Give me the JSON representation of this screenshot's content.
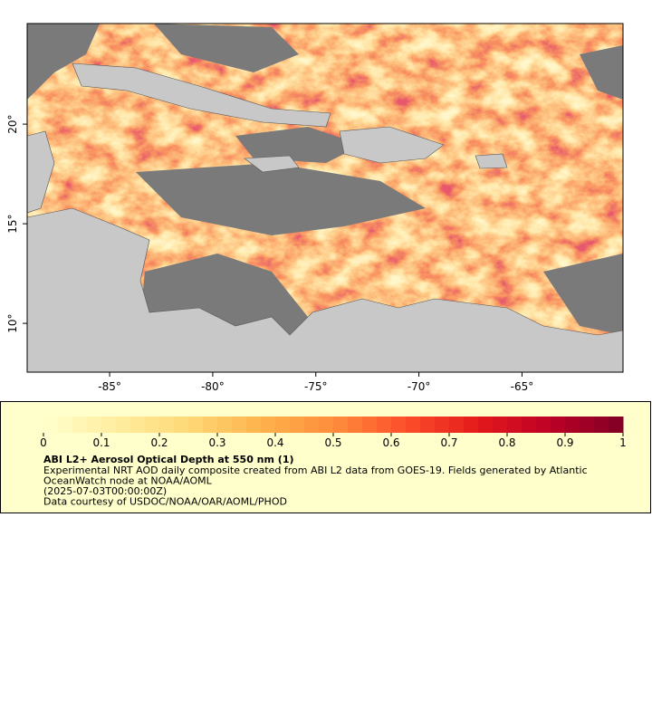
{
  "map": {
    "xlim": [
      -89,
      -60.1
    ],
    "ylim": [
      7.55,
      25.05
    ],
    "xticks": [
      {
        "value": -85,
        "label": "-85°"
      },
      {
        "value": -80,
        "label": "-80°"
      },
      {
        "value": -75,
        "label": "-75°"
      },
      {
        "value": -70,
        "label": "-70°"
      },
      {
        "value": -65,
        "label": "-65°"
      }
    ],
    "yticks": [
      {
        "value": 10,
        "label": "10°"
      },
      {
        "value": 15,
        "label": "15°"
      },
      {
        "value": 20,
        "label": "20°"
      }
    ]
  },
  "legend": {
    "title": "ABI L2+ Aerosol Optical Depth at 550 nm (1)",
    "lines": [
      "Experimental NRT AOD daily composite created from ABI L2 data from GOES-19. Fields generated by Atlantic",
      "OceanWatch node at NOAA/AOML",
      "(2025-07-03T00:00:00Z)",
      "Data courtesy of USDOC/NOAA/OAR/AOML/PHOD"
    ],
    "colorbar": {
      "range": [
        0,
        1
      ],
      "ticks": [
        0,
        0.1,
        0.2,
        0.3,
        0.4,
        0.5,
        0.6,
        0.7,
        0.8,
        0.9,
        1
      ],
      "colors": [
        "#ffffcc",
        "#ffeda0",
        "#fed976",
        "#feb24c",
        "#fd8d3c",
        "#fc4e2a",
        "#e31a1c",
        "#bd0026",
        "#800026"
      ]
    }
  }
}
